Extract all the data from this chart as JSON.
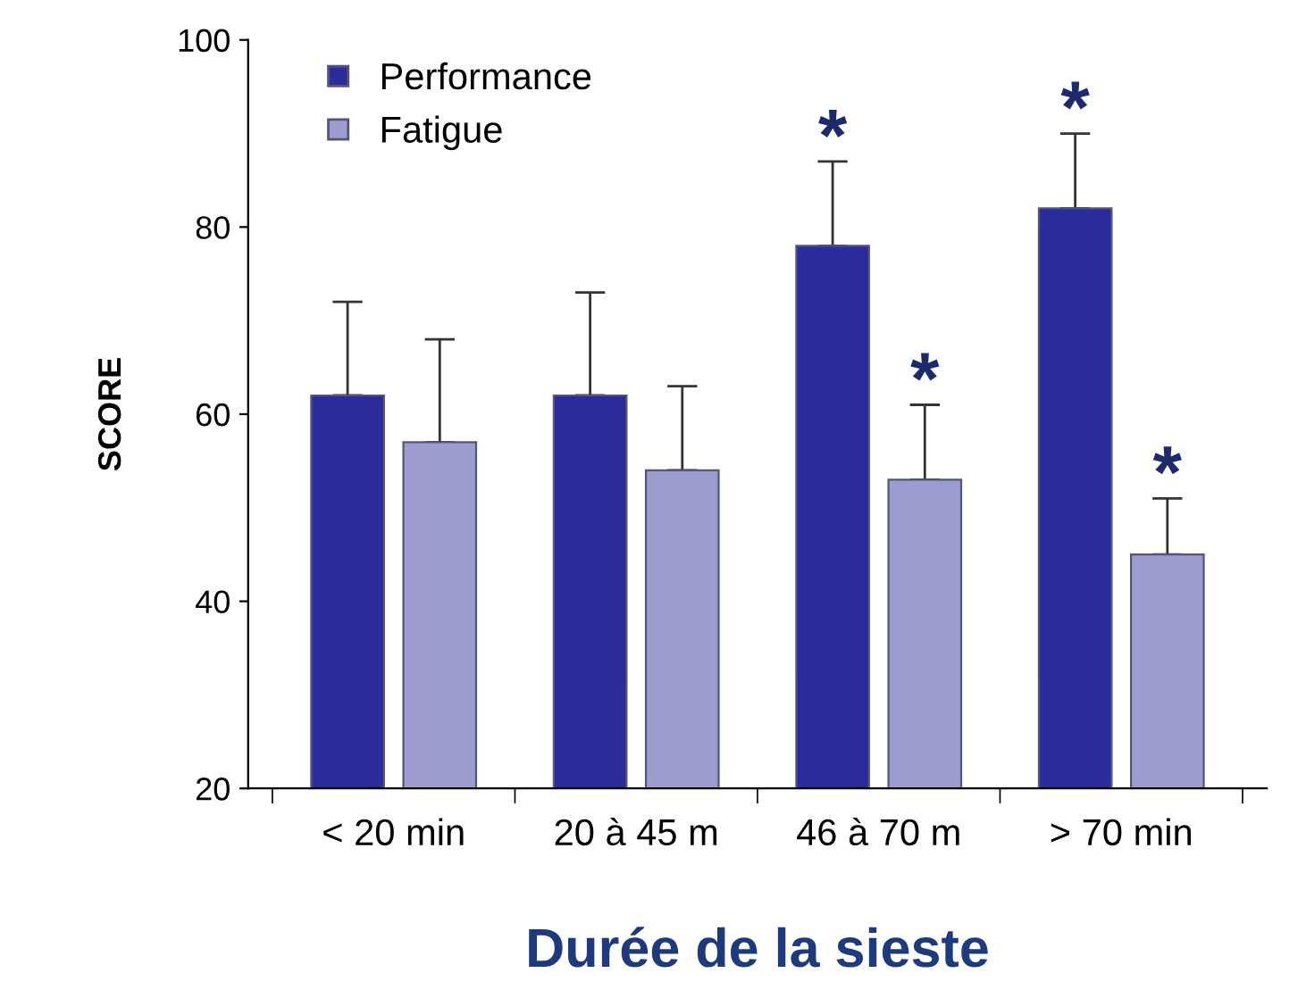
{
  "chart_data": {
    "type": "bar",
    "xlabel": "Durée de la sieste",
    "ylabel": "SCORE",
    "categories": [
      "< 20 min",
      "20 à 45 m",
      "46 à 70 m",
      "> 70 min"
    ],
    "series": [
      {
        "name": "Performance",
        "color": "#2b2b9c",
        "values": [
          62,
          62,
          78,
          82
        ],
        "errors": [
          [
            62,
            72
          ],
          [
            62,
            73
          ],
          [
            78,
            87
          ],
          [
            82,
            90
          ]
        ]
      },
      {
        "name": "Fatigue",
        "color": "#9c9cce",
        "values": [
          57,
          54,
          53,
          45
        ],
        "errors": [
          [
            57,
            68
          ],
          [
            54,
            63
          ],
          [
            53,
            61
          ],
          [
            45,
            51
          ]
        ]
      }
    ],
    "annotations": [
      "*",
      "*",
      "*",
      "*"
    ],
    "ylim": [
      20,
      100
    ],
    "yticks": [
      20,
      40,
      60,
      80,
      100
    ],
    "grid": false,
    "legend": "top left"
  }
}
